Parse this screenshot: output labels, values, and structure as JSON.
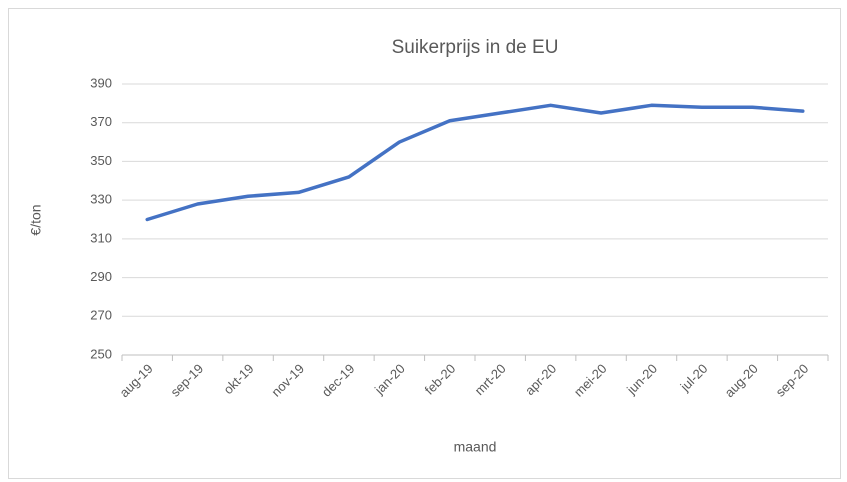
{
  "chart_data": {
    "type": "line",
    "title": "Suikerprijs in de EU",
    "x_label": "maand",
    "y_label": "€/ton",
    "categories": [
      "aug-19",
      "sep-19",
      "okt-19",
      "nov-19",
      "dec-19",
      "jan-20",
      "feb-20",
      "mrt-20",
      "apr-20",
      "mei-20",
      "jun-20",
      "jul-20",
      "aug-20",
      "sep-20"
    ],
    "series": [
      {
        "name": "Suikerprijs",
        "color": "#4472c4",
        "values": [
          320,
          328,
          332,
          334,
          342,
          360,
          371,
          375,
          379,
          375,
          379,
          378,
          378,
          376
        ]
      }
    ],
    "ylim": [
      250,
      390
    ],
    "yticks": [
      250,
      270,
      290,
      310,
      330,
      350,
      370,
      390
    ],
    "grid": true
  }
}
